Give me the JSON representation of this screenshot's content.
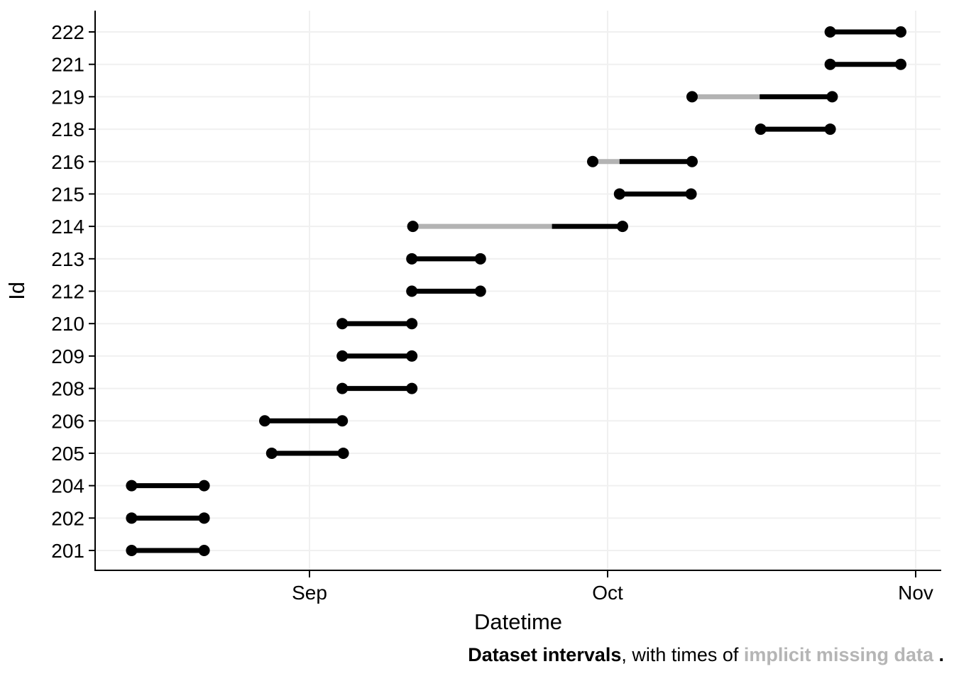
{
  "figure": {
    "caption": {
      "lead_bold": "Dataset intervals",
      "middle": ", with times of ",
      "missing_bold_gray": "implicit missing data",
      "trail": " ."
    }
  },
  "chart_data": {
    "type": "interval",
    "description": "Horizontal time-interval (dumbbell) chart: one interval per Id with round endpoint dots; light-gray sub-segments mark implicit missing data",
    "xlabel": "Datetime",
    "ylabel": "Id",
    "x_unit": "days since Aug 1 (estimated from month gridlines; Sep=31, Oct=61, Nov=92)",
    "x_domain": [
      9.5,
      94.5
    ],
    "x_ticks": [
      {
        "label": "Sep",
        "day": 31
      },
      {
        "label": "Oct",
        "day": 61
      },
      {
        "label": "Nov",
        "day": 92
      }
    ],
    "grid": "light horizontal gridline per Id row, light vertical gridline per month tick",
    "legend_position": "none",
    "colors": {
      "observed": "#000000",
      "missing": "#b3b3b3",
      "grid": "#f0f0f0",
      "axis": "#000000",
      "caption_gray": "#b5b5b5"
    },
    "rows": [
      {
        "id": "222",
        "segments": [
          {
            "start_day": 83.4,
            "end_day": 90.5,
            "kind": "observed"
          }
        ]
      },
      {
        "id": "221",
        "segments": [
          {
            "start_day": 83.4,
            "end_day": 90.5,
            "kind": "observed"
          }
        ]
      },
      {
        "id": "219",
        "segments": [
          {
            "start_day": 69.5,
            "end_day": 76.3,
            "kind": "missing"
          },
          {
            "start_day": 76.3,
            "end_day": 83.6,
            "kind": "observed"
          }
        ]
      },
      {
        "id": "218",
        "segments": [
          {
            "start_day": 76.4,
            "end_day": 83.4,
            "kind": "observed"
          }
        ]
      },
      {
        "id": "216",
        "segments": [
          {
            "start_day": 59.5,
            "end_day": 62.2,
            "kind": "missing"
          },
          {
            "start_day": 62.2,
            "end_day": 69.5,
            "kind": "observed"
          }
        ]
      },
      {
        "id": "215",
        "segments": [
          {
            "start_day": 62.2,
            "end_day": 69.4,
            "kind": "observed"
          }
        ]
      },
      {
        "id": "214",
        "segments": [
          {
            "start_day": 41.4,
            "end_day": 55.4,
            "kind": "missing"
          },
          {
            "start_day": 55.4,
            "end_day": 62.5,
            "kind": "observed"
          }
        ]
      },
      {
        "id": "213",
        "segments": [
          {
            "start_day": 41.3,
            "end_day": 48.2,
            "kind": "observed"
          }
        ]
      },
      {
        "id": "212",
        "segments": [
          {
            "start_day": 41.3,
            "end_day": 48.2,
            "kind": "observed"
          }
        ]
      },
      {
        "id": "210",
        "segments": [
          {
            "start_day": 34.3,
            "end_day": 41.3,
            "kind": "observed"
          }
        ]
      },
      {
        "id": "209",
        "segments": [
          {
            "start_day": 34.3,
            "end_day": 41.3,
            "kind": "observed"
          }
        ]
      },
      {
        "id": "208",
        "segments": [
          {
            "start_day": 34.3,
            "end_day": 41.3,
            "kind": "observed"
          }
        ]
      },
      {
        "id": "206",
        "segments": [
          {
            "start_day": 26.5,
            "end_day": 34.3,
            "kind": "observed"
          }
        ]
      },
      {
        "id": "205",
        "segments": [
          {
            "start_day": 27.2,
            "end_day": 34.4,
            "kind": "observed"
          }
        ]
      },
      {
        "id": "204",
        "segments": [
          {
            "start_day": 13.1,
            "end_day": 20.4,
            "kind": "observed"
          }
        ]
      },
      {
        "id": "202",
        "segments": [
          {
            "start_day": 13.1,
            "end_day": 20.4,
            "kind": "observed"
          }
        ]
      },
      {
        "id": "201",
        "segments": [
          {
            "start_day": 13.1,
            "end_day": 20.4,
            "kind": "observed"
          }
        ]
      }
    ]
  }
}
